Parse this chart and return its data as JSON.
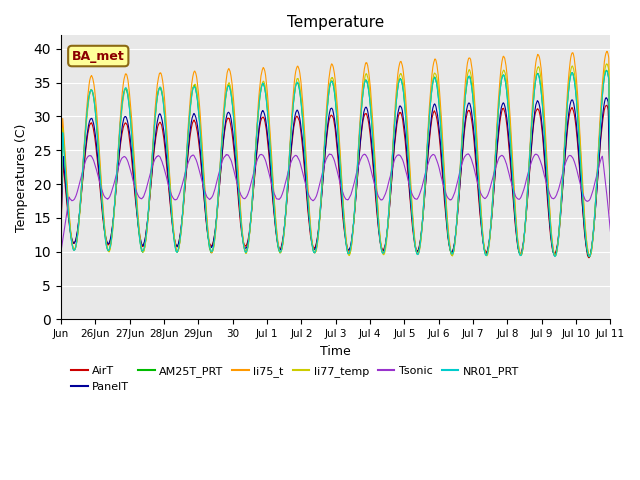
{
  "title": "Temperature",
  "ylabel": "Temperatures (C)",
  "xlabel": "Time",
  "annotation": "BA_met",
  "ylim": [
    0,
    42
  ],
  "yticks": [
    0,
    5,
    10,
    15,
    20,
    25,
    30,
    35,
    40
  ],
  "plot_bg": "#e8e8e8",
  "fig_bg": "#ffffff",
  "legend": [
    {
      "label": "AirT",
      "color": "#cc0000"
    },
    {
      "label": "PanelT",
      "color": "#000099"
    },
    {
      "label": "AM25T_PRT",
      "color": "#00bb00"
    },
    {
      "label": "li75_t",
      "color": "#ff9900"
    },
    {
      "label": "li77_temp",
      "color": "#cccc00"
    },
    {
      "label": "Tsonic",
      "color": "#9933cc"
    },
    {
      "label": "NR01_PRT",
      "color": "#00cccc"
    }
  ],
  "xtick_labels": [
    "Jun",
    "26Jun",
    "27Jun",
    "28Jun",
    "29Jun",
    "30",
    "Jul 1",
    "Jul 2",
    "Jul 3",
    "Jul 4",
    "Jul 5",
    "Jul 6",
    "Jul 7",
    "Jul 8",
    "Jul 9",
    "Jul 10",
    "Jul 11"
  ],
  "grid_color": "#ffffff",
  "n_points": 3000,
  "seed": 42
}
